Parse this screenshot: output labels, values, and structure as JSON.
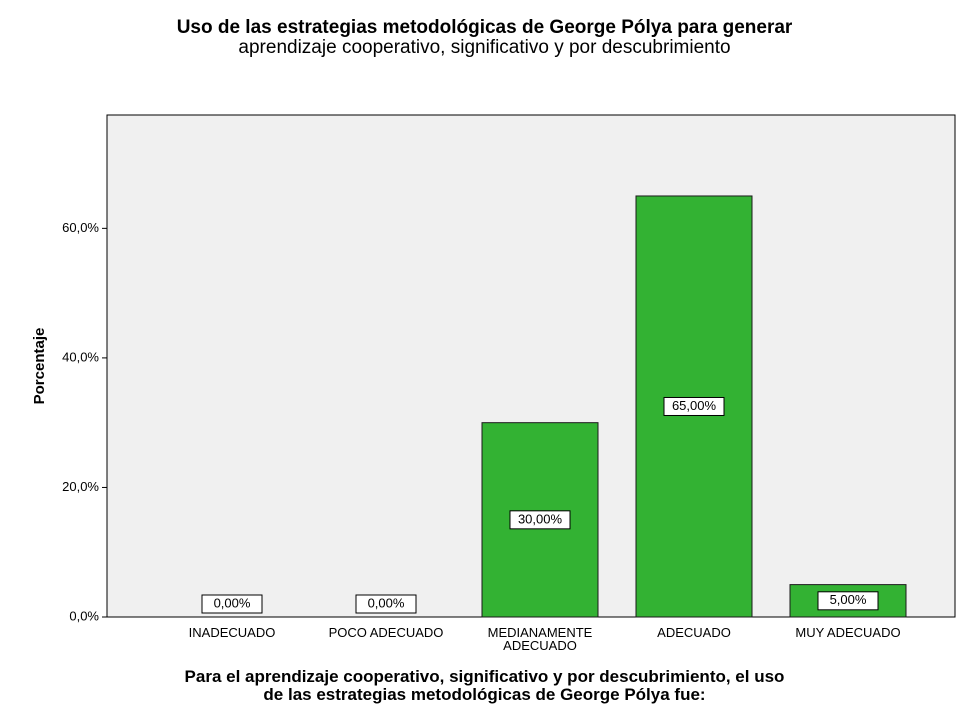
{
  "chart_data": {
    "type": "bar",
    "title": [
      "Uso de las estrategias metodológicas de George Pólya para generar",
      "aprendizaje cooperativo, significativo y por descubrimiento"
    ],
    "xlabel": [
      "Para el aprendizaje cooperativo, significativo y por descubrimiento, el uso",
      "de las estrategias metodológicas de George Pólya fue:"
    ],
    "ylabel": "Porcentaje",
    "categories": [
      "INADECUADO",
      "POCO ADECUADO",
      "MEDIANAMENTE ADECUADO",
      "ADECUADO",
      "MUY ADECUADO"
    ],
    "values": [
      0,
      0,
      30,
      65,
      5
    ],
    "value_labels": [
      "0,00%",
      "0,00%",
      "30,00%",
      "65,00%",
      "5,00%"
    ],
    "color": "#33b233",
    "ylim": [
      0,
      77.5
    ],
    "yticks": [
      {
        "value": 0,
        "label": "0,0%"
      },
      {
        "value": 20,
        "label": "20,0%"
      },
      {
        "value": 40,
        "label": "40,0%"
      },
      {
        "value": 60,
        "label": "60,0%"
      }
    ]
  }
}
